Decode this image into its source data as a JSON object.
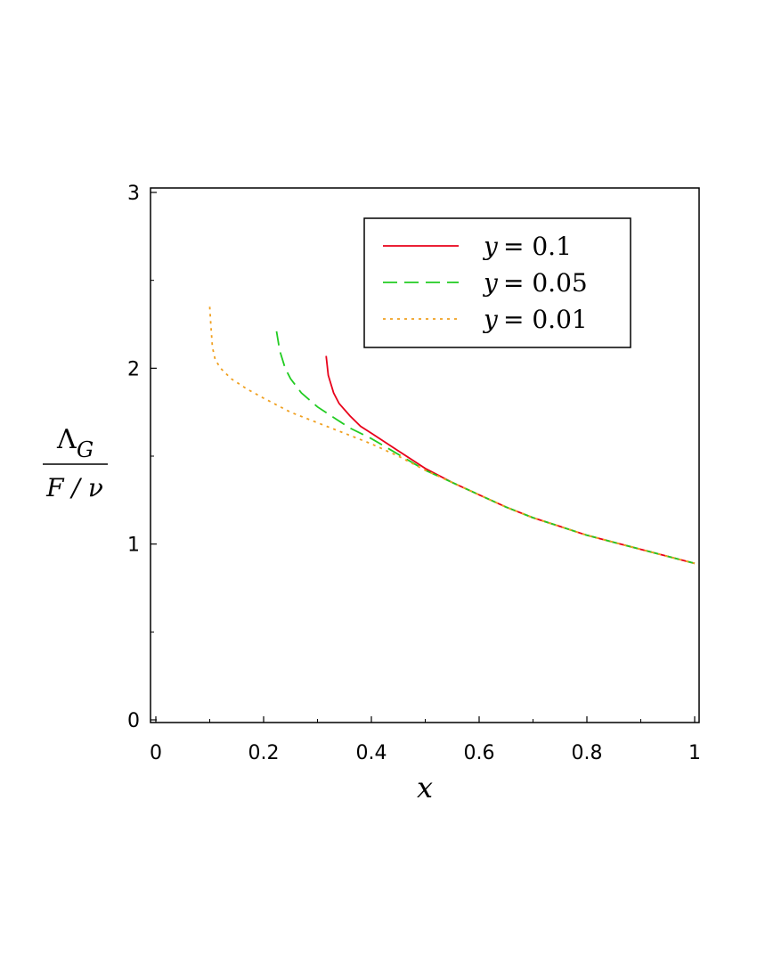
{
  "chart_data": {
    "type": "line",
    "xlabel": "x",
    "ylabel": {
      "numerator": "Λ",
      "numerator_subscript": "G",
      "denominator": "F / ν"
    },
    "xlim": [
      0,
      1
    ],
    "ylim": [
      0,
      3
    ],
    "x_ticks": [
      0,
      0.2,
      0.4,
      0.6,
      0.8,
      1
    ],
    "x_tick_labels": [
      "0",
      "0.2",
      "0.4",
      "0.6",
      "0.8",
      "1"
    ],
    "y_ticks": [
      0,
      1,
      2,
      3
    ],
    "y_tick_labels": [
      "0",
      "1",
      "2",
      "3"
    ],
    "grid": false,
    "legend_position": "top-right",
    "series": [
      {
        "name": "y = 0.1",
        "legend_var": "y",
        "legend_value": "= 0.1",
        "color": "#e8001a",
        "style": "solid",
        "points": [
          [
            0.316,
            2.07
          ],
          [
            0.32,
            1.96
          ],
          [
            0.33,
            1.86
          ],
          [
            0.34,
            1.8
          ],
          [
            0.36,
            1.73
          ],
          [
            0.38,
            1.67
          ],
          [
            0.4,
            1.63
          ],
          [
            0.45,
            1.53
          ],
          [
            0.5,
            1.43
          ],
          [
            0.55,
            1.35
          ],
          [
            0.6,
            1.28
          ],
          [
            0.65,
            1.21
          ],
          [
            0.7,
            1.15
          ],
          [
            0.75,
            1.1
          ],
          [
            0.8,
            1.05
          ],
          [
            0.85,
            1.01
          ],
          [
            0.9,
            0.97
          ],
          [
            0.95,
            0.93
          ],
          [
            1.0,
            0.89
          ]
        ]
      },
      {
        "name": "y = 0.05",
        "legend_var": "y",
        "legend_value": "= 0.05",
        "color": "#22cc22",
        "style": "dashed",
        "points": [
          [
            0.224,
            2.21
          ],
          [
            0.23,
            2.1
          ],
          [
            0.24,
            2.0
          ],
          [
            0.25,
            1.94
          ],
          [
            0.27,
            1.86
          ],
          [
            0.3,
            1.78
          ],
          [
            0.33,
            1.72
          ],
          [
            0.36,
            1.66
          ],
          [
            0.4,
            1.6
          ],
          [
            0.45,
            1.51
          ],
          [
            0.5,
            1.42
          ],
          [
            0.55,
            1.35
          ],
          [
            0.6,
            1.28
          ],
          [
            0.65,
            1.21
          ],
          [
            0.7,
            1.15
          ],
          [
            0.75,
            1.1
          ],
          [
            0.8,
            1.05
          ],
          [
            0.85,
            1.01
          ],
          [
            0.9,
            0.97
          ],
          [
            0.95,
            0.93
          ],
          [
            1.0,
            0.89
          ]
        ]
      },
      {
        "name": "y = 0.01",
        "legend_var": "y",
        "legend_value": "= 0.01",
        "color": "#f0a020",
        "style": "dotted",
        "points": [
          [
            0.1,
            2.35
          ],
          [
            0.102,
            2.25
          ],
          [
            0.105,
            2.12
          ],
          [
            0.11,
            2.05
          ],
          [
            0.12,
            2.0
          ],
          [
            0.14,
            1.94
          ],
          [
            0.17,
            1.88
          ],
          [
            0.2,
            1.83
          ],
          [
            0.25,
            1.75
          ],
          [
            0.3,
            1.69
          ],
          [
            0.35,
            1.63
          ],
          [
            0.4,
            1.57
          ],
          [
            0.45,
            1.5
          ],
          [
            0.5,
            1.42
          ],
          [
            0.55,
            1.35
          ],
          [
            0.6,
            1.28
          ],
          [
            0.65,
            1.21
          ],
          [
            0.7,
            1.15
          ],
          [
            0.75,
            1.1
          ],
          [
            0.8,
            1.05
          ],
          [
            0.85,
            1.01
          ],
          [
            0.9,
            0.97
          ],
          [
            0.95,
            0.93
          ],
          [
            1.0,
            0.89
          ]
        ]
      }
    ]
  }
}
